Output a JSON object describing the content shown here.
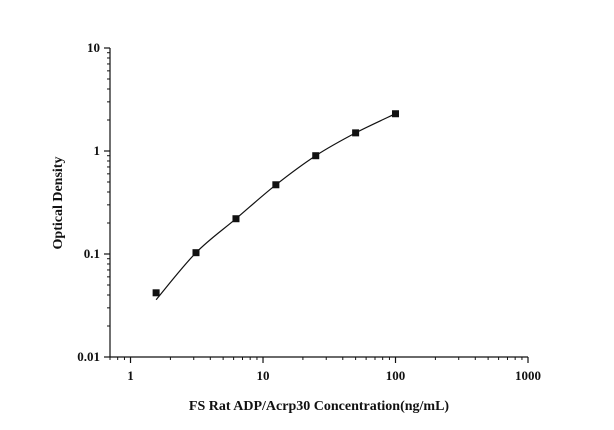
{
  "chart_data": {
    "type": "scatter",
    "title": "",
    "xlabel": "FS Rat ADP/Acrp30 Concentration(ng/mL)",
    "ylabel": "Optical Density",
    "xscale": "log",
    "yscale": "log",
    "xlim": [
      0.7,
      1000
    ],
    "ylim": [
      0.01,
      10
    ],
    "x_ticks": [
      1,
      10,
      100,
      1000
    ],
    "x_tick_labels": [
      "1",
      "10",
      "100",
      "1000"
    ],
    "y_ticks": [
      0.01,
      0.1,
      1,
      10
    ],
    "y_tick_labels": [
      "0.01",
      "0.1",
      "1",
      "10"
    ],
    "grid": false,
    "legend": "none",
    "series": [
      {
        "marker": "square",
        "color": "#111111",
        "x": [
          1.56,
          3.12,
          6.25,
          12.5,
          25,
          50,
          100
        ],
        "y": [
          0.042,
          0.103,
          0.22,
          0.47,
          0.9,
          1.5,
          2.3
        ],
        "fit_curve": true,
        "fit_x_range": [
          1.56,
          100
        ],
        "fit_start_y": 0.036
      }
    ]
  }
}
